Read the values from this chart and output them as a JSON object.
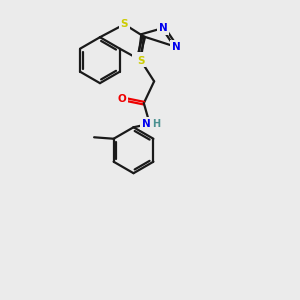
{
  "background_color": "#ebebeb",
  "bond_color": "#1a1a1a",
  "atom_colors": {
    "S": "#cccc00",
    "N": "#0000ee",
    "O": "#ee0000",
    "C": "#1a1a1a",
    "H": "#4a9090"
  },
  "bond_lw": 1.6,
  "hex_r": 0.75,
  "figsize": [
    3.0,
    3.0
  ],
  "dpi": 100
}
